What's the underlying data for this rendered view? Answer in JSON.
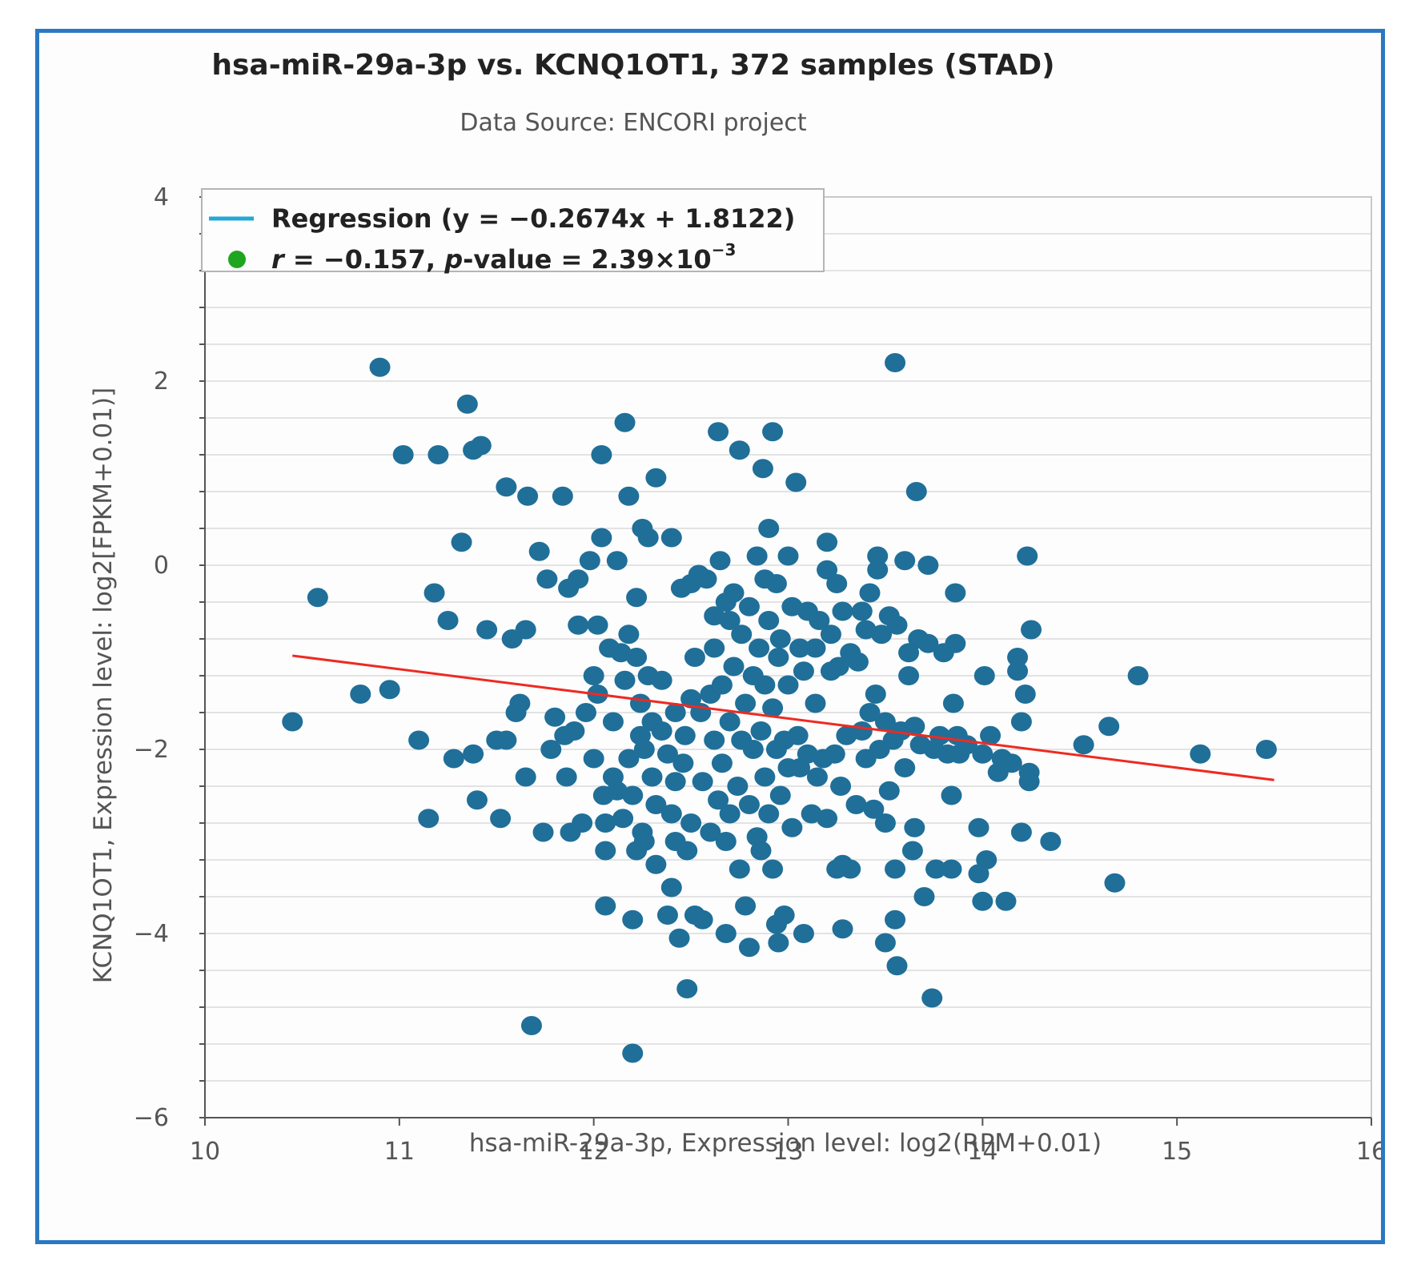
{
  "colors": {
    "frame": "#2a78c2",
    "point": "#1f6f99",
    "regression": "#ee2a22",
    "legend_line": "#23a8d8",
    "legend_dot": "#1fa51f",
    "grid": "#e3e3e3",
    "text": "#222222",
    "subtext": "#555555"
  },
  "chart_data": {
    "type": "scatter",
    "title": "hsa-miR-29a-3p vs. KCNQ1OT1, 372 samples (STAD)",
    "subtitle": "Data Source: ENCORI project",
    "xlabel": "hsa-miR-29a-3p, Expression level: log2(RPM+0.01)",
    "ylabel": "KCNQ1OT1, Expression level: log2[FPKM+0.01)]",
    "xlim": [
      10,
      16
    ],
    "ylim": [
      -6,
      4
    ],
    "xticks": [
      10,
      11,
      12,
      13,
      14,
      15,
      16
    ],
    "xtick_labels": [
      "10",
      "11",
      "12",
      "13",
      "14",
      "15",
      "16"
    ],
    "yticks": [
      4,
      2,
      0,
      -2,
      -4,
      -6
    ],
    "ytick_labels": [
      "4",
      "2",
      "0",
      "−2",
      "−4",
      "−6"
    ],
    "grid": true,
    "legend_position": "top-left",
    "legend": {
      "regression_prefix": "Regression (y = −0.2674x + 1.8122)",
      "stats_r_symbol": "r",
      "stats_r_value": " = −0.157, ",
      "stats_p_symbol": "p",
      "stats_p_value": "-value = 2.39×10",
      "stats_p_exponent": "−3"
    },
    "regression": {
      "slope": -0.2674,
      "intercept": 1.8122,
      "x_range": [
        10.45,
        15.5
      ]
    },
    "points": [
      [
        10.45,
        -1.7
      ],
      [
        10.58,
        -0.35
      ],
      [
        10.8,
        -1.4
      ],
      [
        10.9,
        2.15
      ],
      [
        10.95,
        -1.35
      ],
      [
        11.02,
        1.2
      ],
      [
        11.1,
        -1.9
      ],
      [
        11.15,
        -2.75
      ],
      [
        11.18,
        -0.3
      ],
      [
        11.2,
        1.2
      ],
      [
        11.25,
        -0.6
      ],
      [
        11.28,
        -2.1
      ],
      [
        11.32,
        0.25
      ],
      [
        11.35,
        1.75
      ],
      [
        11.38,
        1.25
      ],
      [
        11.38,
        -2.05
      ],
      [
        11.4,
        -2.55
      ],
      [
        11.42,
        1.3
      ],
      [
        11.45,
        -0.7
      ],
      [
        11.5,
        -1.9
      ],
      [
        11.52,
        -2.75
      ],
      [
        11.55,
        0.85
      ],
      [
        11.55,
        -1.9
      ],
      [
        11.58,
        -0.8
      ],
      [
        11.6,
        -1.6
      ],
      [
        11.62,
        -1.5
      ],
      [
        11.65,
        -2.3
      ],
      [
        11.65,
        -0.7
      ],
      [
        11.66,
        0.75
      ],
      [
        11.68,
        -5.0
      ],
      [
        11.72,
        0.15
      ],
      [
        11.74,
        -2.9
      ],
      [
        11.76,
        -0.15
      ],
      [
        11.78,
        -2.0
      ],
      [
        11.8,
        -1.65
      ],
      [
        11.84,
        0.75
      ],
      [
        11.85,
        -1.85
      ],
      [
        11.86,
        -2.3
      ],
      [
        11.87,
        -0.25
      ],
      [
        11.88,
        -2.9
      ],
      [
        11.9,
        -1.8
      ],
      [
        11.92,
        -0.15
      ],
      [
        11.92,
        -0.65
      ],
      [
        11.94,
        -2.8
      ],
      [
        11.96,
        -1.6
      ],
      [
        11.98,
        0.05
      ],
      [
        12.0,
        -1.2
      ],
      [
        12.0,
        -2.1
      ],
      [
        12.02,
        -1.4
      ],
      [
        12.02,
        -0.65
      ],
      [
        12.04,
        0.3
      ],
      [
        12.04,
        1.2
      ],
      [
        12.05,
        -2.5
      ],
      [
        12.06,
        -2.8
      ],
      [
        12.06,
        -3.7
      ],
      [
        12.06,
        -3.1
      ],
      [
        12.08,
        -0.9
      ],
      [
        12.1,
        -1.7
      ],
      [
        12.1,
        -2.3
      ],
      [
        12.12,
        -2.45
      ],
      [
        12.12,
        0.05
      ],
      [
        12.14,
        -0.95
      ],
      [
        12.15,
        -2.75
      ],
      [
        12.16,
        1.55
      ],
      [
        12.16,
        -1.25
      ],
      [
        12.18,
        -2.1
      ],
      [
        12.18,
        -0.75
      ],
      [
        12.18,
        0.75
      ],
      [
        12.2,
        -2.5
      ],
      [
        12.2,
        -3.85
      ],
      [
        12.2,
        -5.3
      ],
      [
        12.22,
        -0.35
      ],
      [
        12.22,
        -1.0
      ],
      [
        12.22,
        -3.1
      ],
      [
        12.24,
        -1.5
      ],
      [
        12.24,
        -1.85
      ],
      [
        12.25,
        -2.9
      ],
      [
        12.25,
        0.4
      ],
      [
        12.26,
        -3.0
      ],
      [
        12.26,
        -2.0
      ],
      [
        12.28,
        0.3
      ],
      [
        12.28,
        -1.2
      ],
      [
        12.3,
        -2.3
      ],
      [
        12.3,
        -1.7
      ],
      [
        12.32,
        -2.6
      ],
      [
        12.32,
        -3.25
      ],
      [
        12.32,
        0.95
      ],
      [
        12.35,
        -1.8
      ],
      [
        12.35,
        -1.25
      ],
      [
        12.38,
        -2.05
      ],
      [
        12.38,
        -3.8
      ],
      [
        12.4,
        -2.7
      ],
      [
        12.4,
        -3.5
      ],
      [
        12.4,
        0.3
      ],
      [
        12.42,
        -1.6
      ],
      [
        12.42,
        -2.35
      ],
      [
        12.42,
        -3.0
      ],
      [
        12.44,
        -4.05
      ],
      [
        12.45,
        -0.25
      ],
      [
        12.46,
        -2.15
      ],
      [
        12.47,
        -1.85
      ],
      [
        12.48,
        -3.1
      ],
      [
        12.48,
        -4.6
      ],
      [
        12.5,
        -0.2
      ],
      [
        12.5,
        -1.45
      ],
      [
        12.5,
        -2.8
      ],
      [
        12.52,
        -1.0
      ],
      [
        12.52,
        -3.8
      ],
      [
        12.54,
        -0.1
      ],
      [
        12.55,
        -1.6
      ],
      [
        12.56,
        -2.35
      ],
      [
        12.56,
        -3.85
      ],
      [
        12.58,
        -0.15
      ],
      [
        12.6,
        -1.4
      ],
      [
        12.6,
        -2.9
      ],
      [
        12.62,
        -0.55
      ],
      [
        12.62,
        -1.9
      ],
      [
        12.62,
        -0.9
      ],
      [
        12.64,
        1.45
      ],
      [
        12.64,
        -2.55
      ],
      [
        12.65,
        0.05
      ],
      [
        12.66,
        -1.3
      ],
      [
        12.66,
        -2.15
      ],
      [
        12.68,
        -0.4
      ],
      [
        12.68,
        -3.0
      ],
      [
        12.68,
        -4.0
      ],
      [
        12.7,
        -0.6
      ],
      [
        12.7,
        -1.7
      ],
      [
        12.7,
        -2.7
      ],
      [
        12.72,
        -1.1
      ],
      [
        12.72,
        -0.3
      ],
      [
        12.74,
        -2.4
      ],
      [
        12.75,
        1.25
      ],
      [
        12.75,
        -3.3
      ],
      [
        12.76,
        -1.9
      ],
      [
        12.76,
        -0.75
      ],
      [
        12.78,
        -1.5
      ],
      [
        12.78,
        -3.7
      ],
      [
        12.8,
        -2.6
      ],
      [
        12.8,
        -0.45
      ],
      [
        12.8,
        -4.15
      ],
      [
        12.82,
        -1.2
      ],
      [
        12.82,
        -2.0
      ],
      [
        12.84,
        0.1
      ],
      [
        12.84,
        -2.95
      ],
      [
        12.85,
        -0.9
      ],
      [
        12.86,
        -1.8
      ],
      [
        12.86,
        -3.1
      ],
      [
        12.87,
        1.05
      ],
      [
        12.88,
        -0.15
      ],
      [
        12.88,
        -2.3
      ],
      [
        12.88,
        -1.3
      ],
      [
        12.9,
        -0.6
      ],
      [
        12.9,
        -2.7
      ],
      [
        12.9,
        0.4
      ],
      [
        12.92,
        -1.55
      ],
      [
        12.92,
        -3.3
      ],
      [
        12.92,
        1.45
      ],
      [
        12.94,
        -0.2
      ],
      [
        12.94,
        -2.0
      ],
      [
        12.94,
        -3.9
      ],
      [
        12.95,
        -1.0
      ],
      [
        12.95,
        -4.1
      ],
      [
        12.96,
        -2.5
      ],
      [
        12.96,
        -0.8
      ],
      [
        12.98,
        -1.9
      ],
      [
        12.98,
        -3.8
      ],
      [
        13.0,
        0.1
      ],
      [
        13.0,
        -1.3
      ],
      [
        13.0,
        -2.2
      ],
      [
        13.02,
        -2.85
      ],
      [
        13.02,
        -0.45
      ],
      [
        13.04,
        0.9
      ],
      [
        13.05,
        -1.85
      ],
      [
        13.06,
        -0.9
      ],
      [
        13.06,
        -2.2
      ],
      [
        13.08,
        -4.0
      ],
      [
        13.08,
        -1.15
      ],
      [
        13.1,
        -0.5
      ],
      [
        13.1,
        -2.05
      ],
      [
        13.12,
        -2.7
      ],
      [
        13.14,
        -0.9
      ],
      [
        13.14,
        -1.5
      ],
      [
        13.15,
        -2.3
      ],
      [
        13.16,
        -0.6
      ],
      [
        13.18,
        -2.1
      ],
      [
        13.2,
        -0.05
      ],
      [
        13.2,
        -2.75
      ],
      [
        13.2,
        0.25
      ],
      [
        13.22,
        -1.15
      ],
      [
        13.22,
        -0.75
      ],
      [
        13.24,
        -2.05
      ],
      [
        13.25,
        -0.2
      ],
      [
        13.25,
        -3.3
      ],
      [
        13.26,
        -1.1
      ],
      [
        13.27,
        -2.4
      ],
      [
        13.28,
        -3.25
      ],
      [
        13.28,
        -3.95
      ],
      [
        13.28,
        -0.5
      ],
      [
        13.3,
        -1.85
      ],
      [
        13.32,
        -0.95
      ],
      [
        13.32,
        -3.3
      ],
      [
        13.35,
        -2.6
      ],
      [
        13.36,
        -1.05
      ],
      [
        13.38,
        -0.5
      ],
      [
        13.38,
        -1.8
      ],
      [
        13.4,
        -0.7
      ],
      [
        13.4,
        -2.1
      ],
      [
        13.42,
        -1.6
      ],
      [
        13.42,
        -0.3
      ],
      [
        13.44,
        -2.65
      ],
      [
        13.45,
        -1.4
      ],
      [
        13.46,
        0.1
      ],
      [
        13.46,
        -0.05
      ],
      [
        13.47,
        -2.0
      ],
      [
        13.48,
        -0.75
      ],
      [
        13.5,
        -2.8
      ],
      [
        13.5,
        -1.7
      ],
      [
        13.5,
        -4.1
      ],
      [
        13.52,
        -0.55
      ],
      [
        13.52,
        -2.45
      ],
      [
        13.54,
        -1.9
      ],
      [
        13.55,
        -3.3
      ],
      [
        13.55,
        -3.85
      ],
      [
        13.55,
        2.2
      ],
      [
        13.56,
        -4.35
      ],
      [
        13.56,
        -0.65
      ],
      [
        13.58,
        -1.8
      ],
      [
        13.6,
        -2.2
      ],
      [
        13.6,
        0.05
      ],
      [
        13.62,
        -0.95
      ],
      [
        13.62,
        -1.2
      ],
      [
        13.64,
        -3.1
      ],
      [
        13.65,
        -1.75
      ],
      [
        13.65,
        -2.85
      ],
      [
        13.66,
        0.8
      ],
      [
        13.67,
        -0.8
      ],
      [
        13.68,
        -1.95
      ],
      [
        13.7,
        -3.6
      ],
      [
        13.72,
        0.0
      ],
      [
        13.72,
        -0.85
      ],
      [
        13.74,
        -4.7
      ],
      [
        13.75,
        -2.0
      ],
      [
        13.76,
        -3.3
      ],
      [
        13.78,
        -1.85
      ],
      [
        13.8,
        -0.95
      ],
      [
        13.82,
        -2.05
      ],
      [
        13.84,
        -3.3
      ],
      [
        13.84,
        -2.5
      ],
      [
        13.85,
        -1.5
      ],
      [
        13.86,
        -0.3
      ],
      [
        13.86,
        -0.85
      ],
      [
        13.87,
        -1.85
      ],
      [
        13.88,
        -2.05
      ],
      [
        13.92,
        -1.95
      ],
      [
        13.98,
        -2.85
      ],
      [
        13.98,
        -3.35
      ],
      [
        14.0,
        -2.05
      ],
      [
        14.0,
        -3.65
      ],
      [
        14.01,
        -1.2
      ],
      [
        14.02,
        -3.2
      ],
      [
        14.04,
        -1.85
      ],
      [
        14.08,
        -2.25
      ],
      [
        14.1,
        -2.1
      ],
      [
        14.12,
        -3.65
      ],
      [
        14.15,
        -2.15
      ],
      [
        14.18,
        -1.0
      ],
      [
        14.18,
        -1.15
      ],
      [
        14.2,
        -1.7
      ],
      [
        14.2,
        -2.9
      ],
      [
        14.22,
        -1.4
      ],
      [
        14.23,
        0.1
      ],
      [
        14.24,
        -2.25
      ],
      [
        14.24,
        -2.35
      ],
      [
        14.25,
        -0.7
      ],
      [
        14.35,
        -3.0
      ],
      [
        14.52,
        -1.95
      ],
      [
        14.65,
        -1.75
      ],
      [
        14.68,
        -3.45
      ],
      [
        14.8,
        -1.2
      ],
      [
        15.12,
        -2.05
      ],
      [
        15.46,
        -2.0
      ]
    ]
  }
}
